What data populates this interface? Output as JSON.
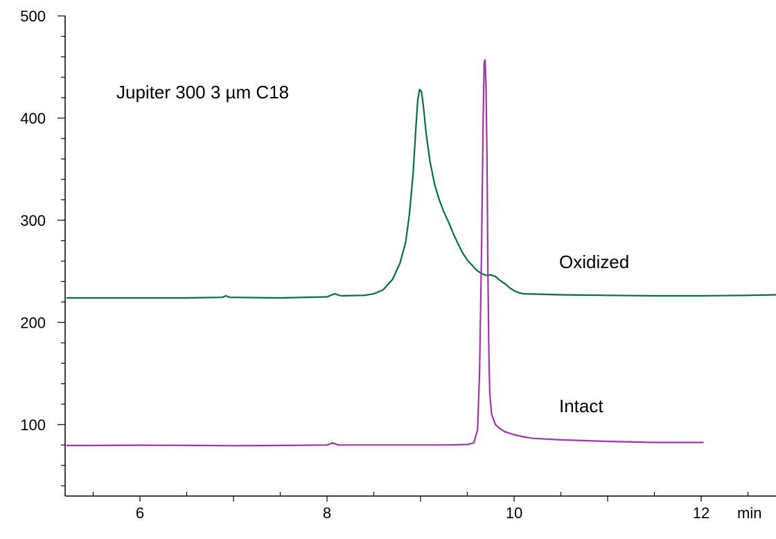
{
  "chart_data": {
    "type": "line",
    "title": "",
    "xlabel": "",
    "ylabel": "",
    "x_unit": "min",
    "xlim": [
      5.2,
      12.8
    ],
    "ylim": [
      30,
      500
    ],
    "x_ticks": [
      6,
      8,
      10,
      12
    ],
    "y_ticks": [
      100,
      200,
      300,
      400,
      500
    ],
    "grid": false,
    "legend": "none",
    "annotations": [
      "Jupiter 300 3 µm C18",
      "Oxidized",
      "Intact"
    ],
    "series": [
      {
        "label": "Oxidized",
        "color": "#00703c",
        "points": [
          [
            5.22,
            224
          ],
          [
            6.0,
            224
          ],
          [
            6.5,
            224
          ],
          [
            6.88,
            224.5
          ],
          [
            6.92,
            226
          ],
          [
            6.96,
            224.5
          ],
          [
            7.5,
            224
          ],
          [
            8.0,
            225
          ],
          [
            8.08,
            228
          ],
          [
            8.15,
            226
          ],
          [
            8.4,
            226.5
          ],
          [
            8.5,
            228
          ],
          [
            8.6,
            232
          ],
          [
            8.7,
            242
          ],
          [
            8.78,
            258
          ],
          [
            8.84,
            278
          ],
          [
            8.88,
            305
          ],
          [
            8.92,
            345
          ],
          [
            8.95,
            390
          ],
          [
            8.97,
            418
          ],
          [
            8.99,
            428
          ],
          [
            9.01,
            426
          ],
          [
            9.03,
            412
          ],
          [
            9.06,
            385
          ],
          [
            9.1,
            358
          ],
          [
            9.15,
            335
          ],
          [
            9.2,
            320
          ],
          [
            9.25,
            308
          ],
          [
            9.3,
            298
          ],
          [
            9.35,
            287
          ],
          [
            9.4,
            277
          ],
          [
            9.45,
            268
          ],
          [
            9.5,
            261
          ],
          [
            9.55,
            256
          ],
          [
            9.6,
            251
          ],
          [
            9.65,
            248
          ],
          [
            9.7,
            246
          ],
          [
            9.75,
            246.5
          ],
          [
            9.8,
            245
          ],
          [
            9.85,
            241
          ],
          [
            9.9,
            238
          ],
          [
            9.95,
            234
          ],
          [
            10.0,
            231
          ],
          [
            10.05,
            229
          ],
          [
            10.1,
            228
          ],
          [
            10.5,
            227
          ],
          [
            11.0,
            226.5
          ],
          [
            11.5,
            226
          ],
          [
            12.0,
            226
          ],
          [
            12.5,
            226.5
          ],
          [
            12.8,
            227
          ]
        ]
      },
      {
        "label": "Intact",
        "color": "#a034a8",
        "points": [
          [
            5.22,
            79.5
          ],
          [
            5.5,
            79.5
          ],
          [
            6.0,
            79.8
          ],
          [
            6.5,
            79.6
          ],
          [
            7.0,
            79.3
          ],
          [
            7.5,
            79.5
          ],
          [
            8.0,
            80
          ],
          [
            8.06,
            82
          ],
          [
            8.12,
            80
          ],
          [
            8.5,
            80
          ],
          [
            9.0,
            80
          ],
          [
            9.3,
            80
          ],
          [
            9.5,
            80.5
          ],
          [
            9.57,
            82
          ],
          [
            9.61,
            95
          ],
          [
            9.63,
            150
          ],
          [
            9.65,
            260
          ],
          [
            9.67,
            400
          ],
          [
            9.68,
            454
          ],
          [
            9.69,
            457
          ],
          [
            9.7,
            430
          ],
          [
            9.71,
            360
          ],
          [
            9.72,
            250
          ],
          [
            9.73,
            170
          ],
          [
            9.74,
            130
          ],
          [
            9.76,
            110
          ],
          [
            9.8,
            100
          ],
          [
            9.85,
            96
          ],
          [
            9.9,
            93
          ],
          [
            10.0,
            90
          ],
          [
            10.1,
            88
          ],
          [
            10.2,
            86.5
          ],
          [
            10.5,
            85
          ],
          [
            11.0,
            83.5
          ],
          [
            11.5,
            82.5
          ],
          [
            12.0,
            82.5
          ],
          [
            12.02,
            82.5
          ]
        ]
      }
    ]
  }
}
